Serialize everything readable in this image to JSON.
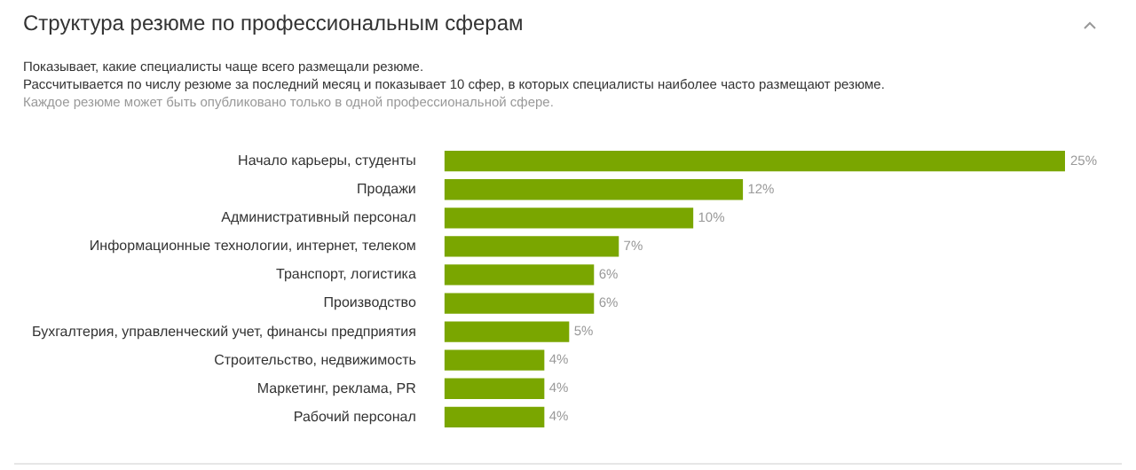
{
  "chart_data": {
    "type": "bar",
    "orientation": "horizontal",
    "title": "Структура резюме по профессиональным сферам",
    "subtitle": "Показывает, какие специалисты чаще всего размещали резюме.\nРассчитывается по числу резюме за последний месяц и показывает 10 сфер, в которых специалисты наиболее часто размещают резюме.",
    "annotations": [
      "Каждое резюме может быть опубликовано только в одной профессиональной сфере."
    ],
    "categories": [
      "Начало карьеры, студенты",
      "Продажи",
      "Административный персонал",
      "Информационные технологии, интернет, телеком",
      "Транспорт, логистика",
      "Производство",
      "Бухгалтерия, управленческий учет, финансы предприятия",
      "Строительство, недвижимость",
      "Маркетинг, реклама, PR",
      "Рабочий персонал"
    ],
    "values": [
      25,
      12,
      10,
      7,
      6,
      6,
      5,
      4,
      4,
      4
    ],
    "value_labels": [
      "25%",
      "12%",
      "10%",
      "7%",
      "6%",
      "6%",
      "5%",
      "4%",
      "4%",
      "4%"
    ],
    "color": "#7aa600",
    "legend": false
  }
}
